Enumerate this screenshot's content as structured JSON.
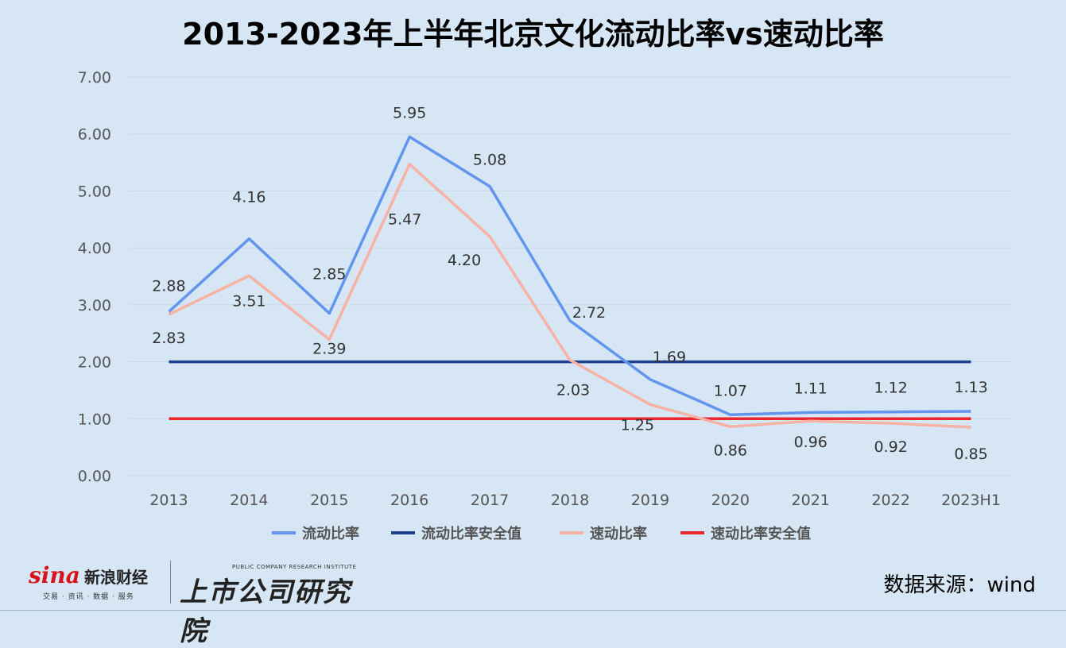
{
  "title": "2013-2023年上半年北京文化流动比率vs速动比率",
  "source_note": "数据来源：wind",
  "logos": {
    "sina_word": "sina",
    "sina_cn": "新浪财经",
    "sina_sub": "交易 · 资讯 · 数据 · 服务",
    "institute_en": "PUBLIC COMPANY RESEARCH INSTITUTE",
    "institute_cn": "上市公司研究院"
  },
  "colors": {
    "background": "#d6e6f4",
    "current_ratio": "#6495ed",
    "current_safe": "#1f3f8f",
    "quick_ratio": "#f7b2a6",
    "quick_safe": "#e8262c",
    "grid": "#c8d8e6"
  },
  "chart_data": {
    "type": "line",
    "title": "2013-2023年上半年北京文化流动比率vs速动比率",
    "categories": [
      "2013",
      "2014",
      "2015",
      "2016",
      "2017",
      "2018",
      "2019",
      "2020",
      "2021",
      "2022",
      "2023H1"
    ],
    "ylim": [
      0,
      7
    ],
    "yticks": [
      "0.00",
      "1.00",
      "2.00",
      "3.00",
      "4.00",
      "5.00",
      "6.00",
      "7.00"
    ],
    "grid": true,
    "legend_position": "bottom",
    "series": [
      {
        "name": "流动比率",
        "color": "#6495ed",
        "labeled": true,
        "values": [
          2.88,
          4.16,
          2.85,
          5.95,
          5.08,
          2.72,
          1.69,
          1.07,
          1.11,
          1.12,
          1.13
        ],
        "labels": [
          "2.88",
          "4.16",
          "2.85",
          "5.95",
          "5.08",
          "2.72",
          "1.69",
          "1.07",
          "1.11",
          "1.12",
          "1.13"
        ]
      },
      {
        "name": "流动比率安全值",
        "color": "#1f3f8f",
        "labeled": false,
        "values": [
          2,
          2,
          2,
          2,
          2,
          2,
          2,
          2,
          2,
          2,
          2
        ]
      },
      {
        "name": "速动比率",
        "color": "#f7b2a6",
        "labeled": true,
        "values": [
          2.83,
          3.51,
          2.39,
          5.47,
          4.2,
          2.03,
          1.25,
          0.86,
          0.96,
          0.92,
          0.85
        ],
        "labels": [
          "2.83",
          "3.51",
          "2.39",
          "5.47",
          "4.20",
          "2.03",
          "1.25",
          "0.86",
          "0.96",
          "0.92",
          "0.85"
        ]
      },
      {
        "name": "速动比率安全值",
        "color": "#e8262c",
        "labeled": false,
        "values": [
          1,
          1,
          1,
          1,
          1,
          1,
          1,
          1,
          1,
          1,
          1
        ]
      }
    ]
  }
}
